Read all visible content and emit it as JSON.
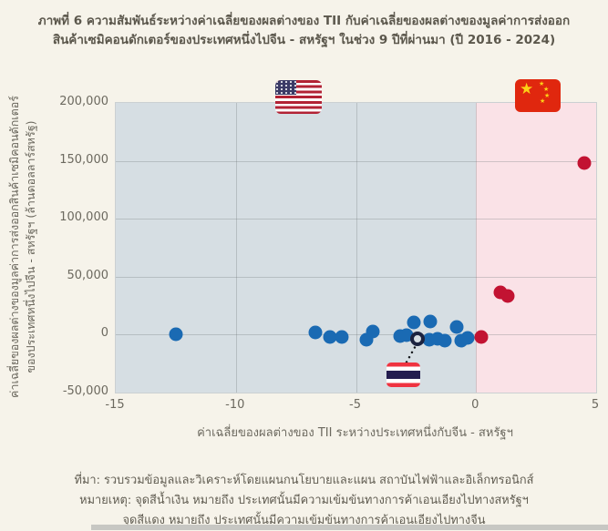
{
  "title": {
    "line1": "ภาพที่ 6 ความสัมพันธ์ระหว่างค่าเฉลี่ยของผลต่างของ TII กับค่าเฉลี่ยของผลต่างของมูลค่าการส่งออก",
    "line2": "สินค้าเซมิคอนดักเตอร์ของประเทศหนึ่งไปจีน - สหรัฐฯ ในช่วง 9 ปีที่ผ่านมา (ปี 2016 - 2024)"
  },
  "chart_data": {
    "type": "scatter",
    "xlabel": "ค่าเฉลี่ยของผลต่างของ TII ระหว่างประเทศหนึ่งกับจีน - สหรัฐฯ",
    "ylabel": [
      "ค่าเฉลี่ยของผลต่างของมูลค่าการส่งออกสินค้าเซมิคอนดักเตอร์",
      "ของประเทศหนึ่งไปจีน - สหรัฐฯ (ล้านดอลลาร์สหรัฐ)"
    ],
    "xlim": [
      -15,
      5
    ],
    "ylim": [
      -50000,
      200000
    ],
    "grid": true,
    "x_ticks": [
      {
        "value": -15,
        "label": "-15"
      },
      {
        "value": -10,
        "label": "-10"
      },
      {
        "value": -5,
        "label": "-5"
      },
      {
        "value": 0,
        "label": "0"
      },
      {
        "value": 5,
        "label": "5"
      }
    ],
    "y_ticks": [
      {
        "value": 200000,
        "label": "200,000"
      },
      {
        "value": 150000,
        "label": "150,000"
      },
      {
        "value": 100000,
        "label": "100,000"
      },
      {
        "value": 50000,
        "label": "50,000"
      },
      {
        "value": 0,
        "label": "0"
      },
      {
        "value": -50000,
        "label": "-50,000"
      }
    ],
    "regions": [
      {
        "name": "us-trade-leaning-zone",
        "x_start": -15,
        "x_end": 0,
        "color": "#d6dee3",
        "flag": "us-flag-icon"
      },
      {
        "name": "china-trade-leaning-zone",
        "x_start": 0,
        "x_end": 5,
        "color": "#fae2e7",
        "flag": "china-flag-icon"
      }
    ],
    "series": [
      {
        "name": "countries-leaning-us",
        "color": "#1a6ab3",
        "points": [
          [
            -12.5,
            0
          ],
          [
            -6.7,
            1500
          ],
          [
            -6.1,
            -2000
          ],
          [
            -5.6,
            -2000
          ],
          [
            -4.55,
            -4500
          ],
          [
            -4.3,
            3000
          ],
          [
            -3.15,
            -1500
          ],
          [
            -2.9,
            -500
          ],
          [
            -2.6,
            10500
          ],
          [
            -1.95,
            -4300
          ],
          [
            -1.9,
            11500
          ],
          [
            -1.6,
            -3500
          ],
          [
            -1.3,
            -5000
          ],
          [
            -0.8,
            6500
          ],
          [
            -0.6,
            -5000
          ],
          [
            -0.35,
            -2500
          ]
        ]
      },
      {
        "name": "countries-leaning-china",
        "color": "#c21332",
        "points": [
          [
            0.2,
            -2000
          ],
          [
            1.0,
            36500
          ],
          [
            1.3,
            33500
          ],
          [
            4.5,
            148000
          ]
        ]
      }
    ],
    "highlight": {
      "name": "thailand",
      "x": -2.44,
      "y": -4000,
      "ring_color": "#1c2340",
      "flag": "thailand-flag-icon"
    }
  },
  "footer": {
    "source": "ที่มา: รวบรวมข้อมูลและวิเคราะห์โดยแผนกนโยบายและแผน สถาบันไฟฟ้าและอิเล็กทรอนิกส์",
    "note1": "หมายเหตุ: จุดสีน้ำเงิน หมายถึง ประเทศนั้นมีความเข้มข้นทางการค้าเอนเอียงไปทางสหรัฐฯ",
    "note2": "จุดสีแดง   หมายถึง ประเทศนั้นมีความเข้มข้นทางการค้าเอนเอียงไปทางจีน"
  },
  "icons": [
    "us-flag-icon",
    "china-flag-icon",
    "thailand-flag-icon"
  ]
}
